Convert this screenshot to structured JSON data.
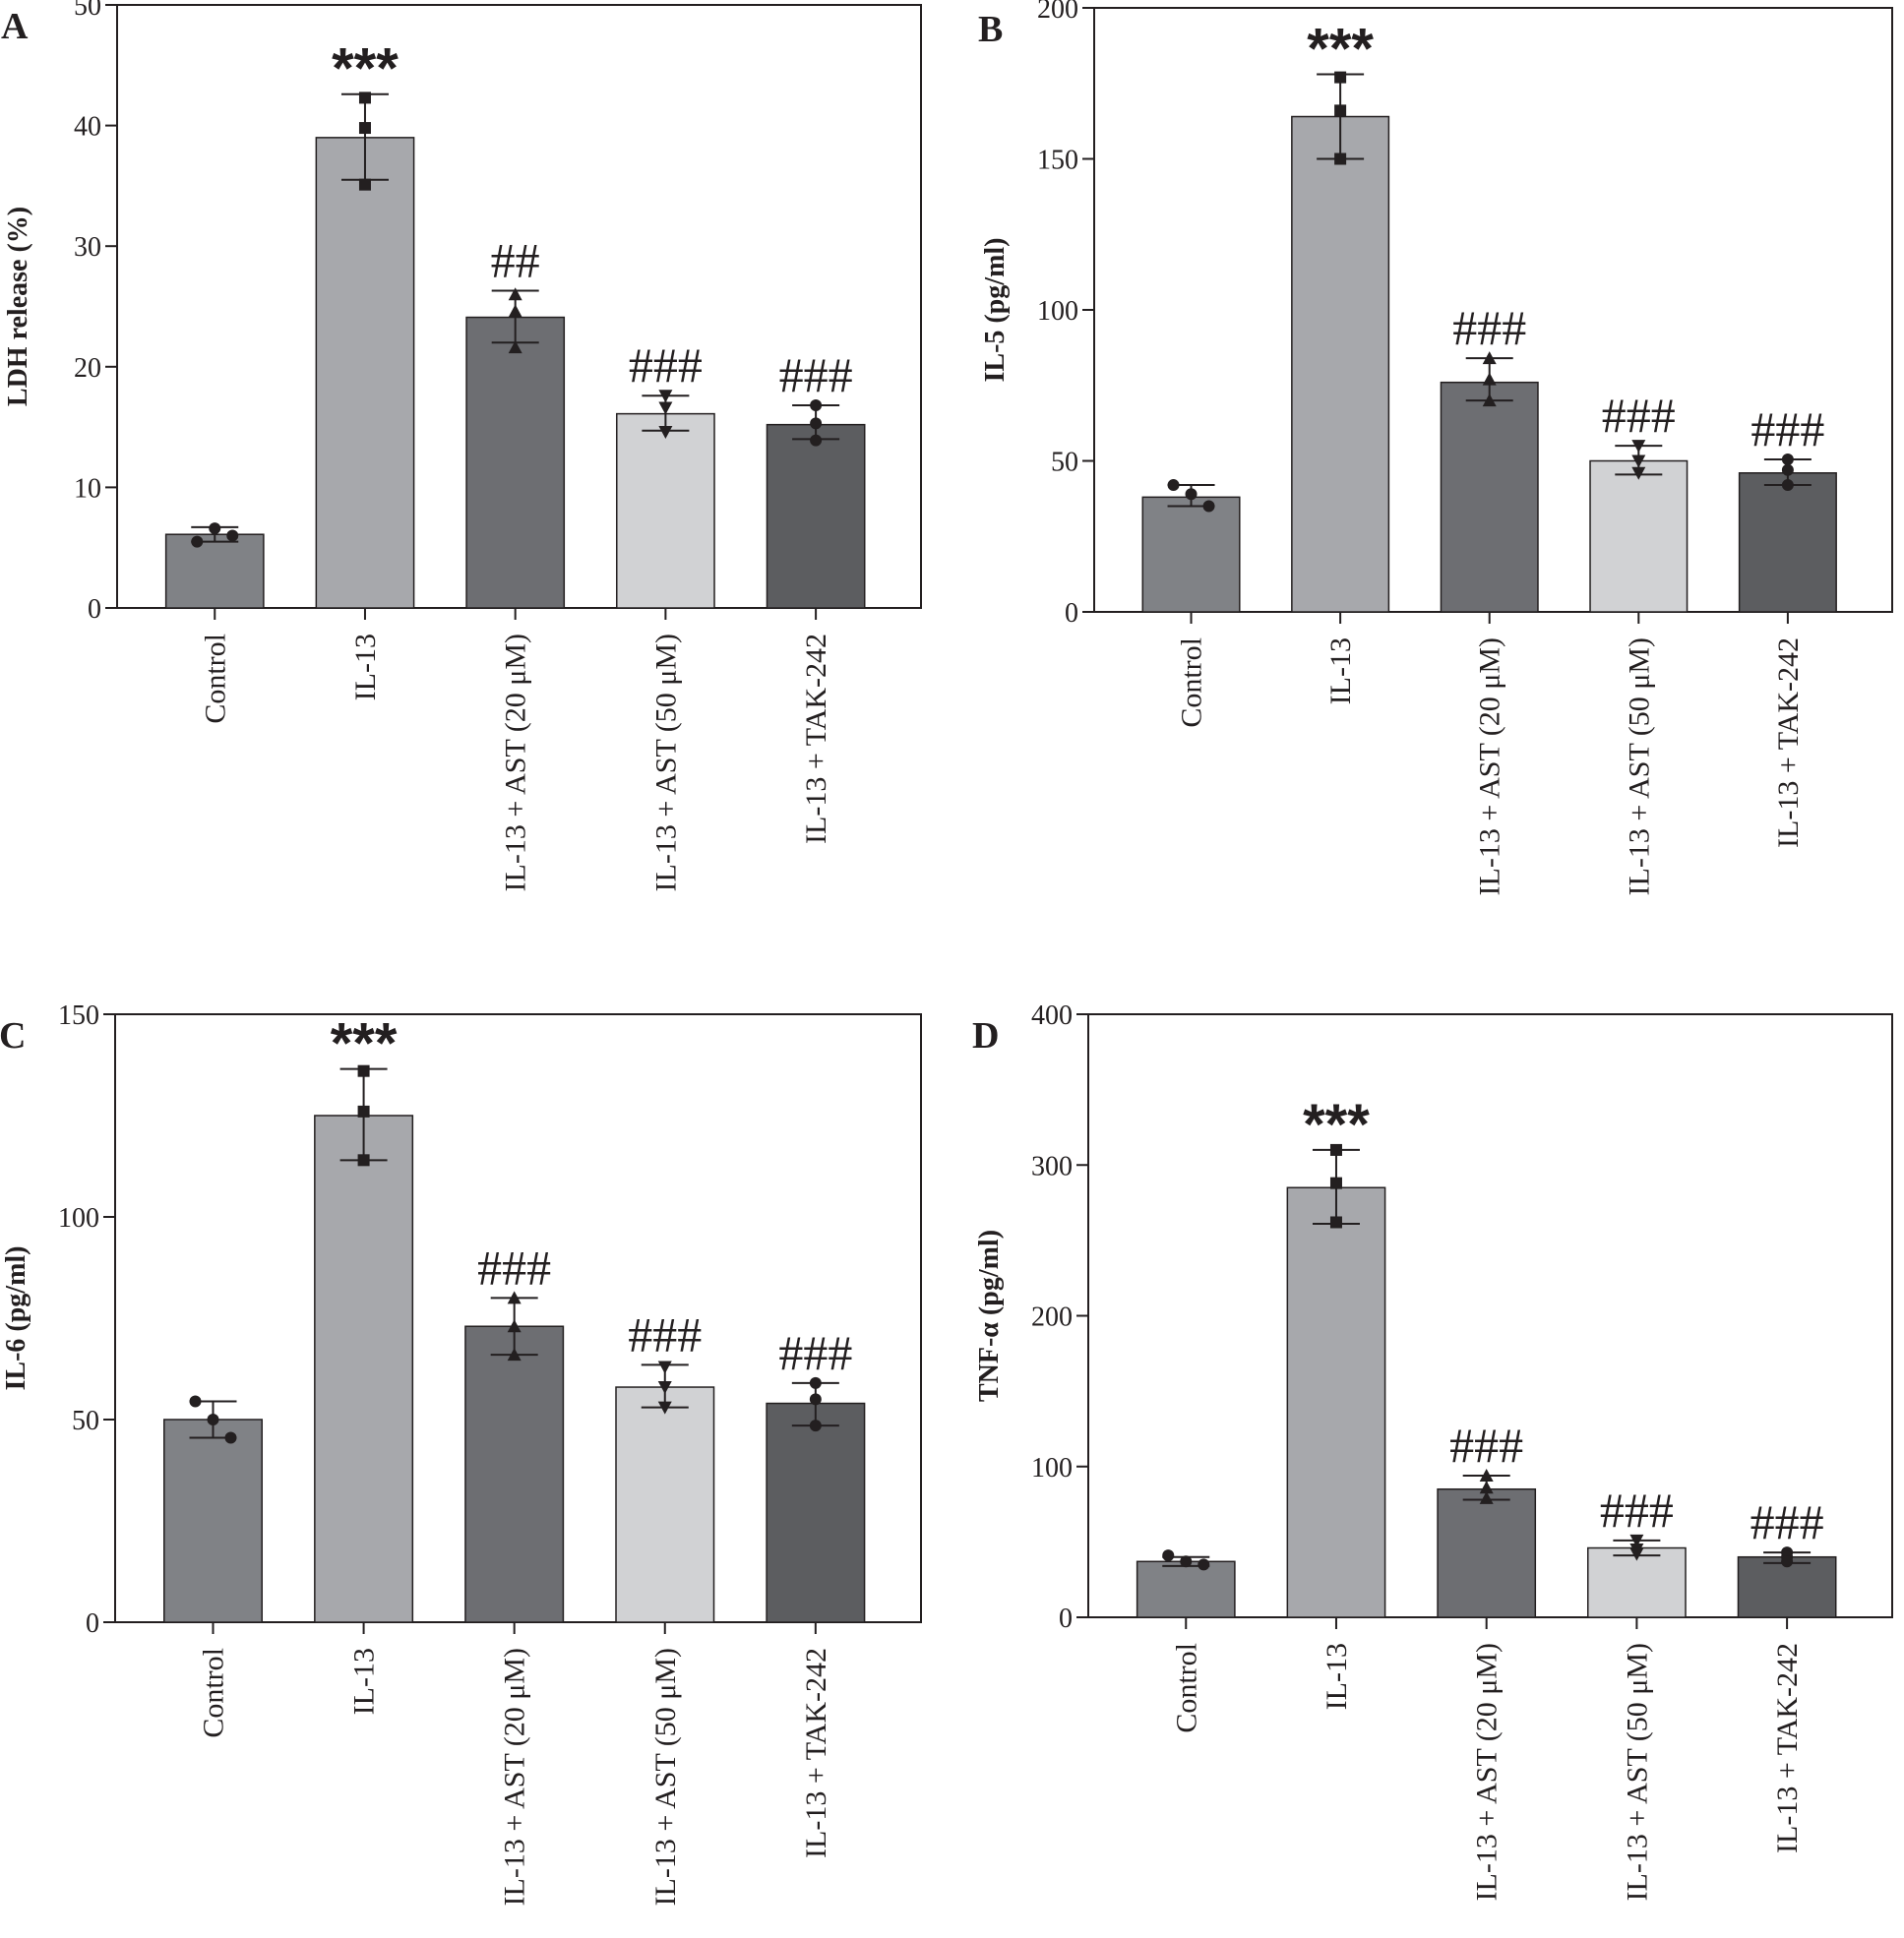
{
  "colors": {
    "bars": [
      "#808286",
      "#a7a8ac",
      "#6d6e72",
      "#d1d2d4",
      "#5c5d60"
    ],
    "axis": "#231f20"
  },
  "marker_shapes": [
    "circle",
    "square",
    "triangle-up",
    "triangle-down",
    "circle"
  ],
  "chart_data": [
    {
      "panel": "A",
      "type": "bar",
      "ylabel": "LDH release (%)",
      "ylim": [
        0,
        50
      ],
      "yticks": [
        0,
        10,
        20,
        30,
        40,
        50
      ],
      "categories": [
        "Control",
        "IL-13",
        "IL-13 + AST (20 μM)",
        "IL-13 + AST (50 μM)",
        "IL-13 + TAK-242"
      ],
      "values": [
        6.1,
        39,
        24.1,
        16.1,
        15.2
      ],
      "error": [
        [
          5.5,
          6.7
        ],
        [
          35.5,
          42.6
        ],
        [
          22.0,
          26.3
        ],
        [
          14.7,
          17.6
        ],
        [
          14.0,
          16.8
        ]
      ],
      "points": [
        [
          5.5,
          6.6,
          6.0
        ],
        [
          42.3,
          39.8,
          35.1
        ],
        [
          26.0,
          24.6,
          21.6
        ],
        [
          17.6,
          16.6,
          14.6
        ],
        [
          16.8,
          15.3,
          13.9
        ]
      ],
      "annotations": [
        "",
        "***",
        "##",
        "###",
        "###"
      ]
    },
    {
      "panel": "B",
      "type": "bar",
      "ylabel": "IL-5 (pg/ml)",
      "ylim": [
        0,
        200
      ],
      "yticks": [
        0,
        50,
        100,
        150,
        200
      ],
      "categories": [
        "Control",
        "IL-13",
        "IL-13 + AST (20 μM)",
        "IL-13 + AST (50 μM)",
        "IL-13 + TAK-242"
      ],
      "values": [
        38,
        164,
        76,
        50,
        46
      ],
      "error": [
        [
          35,
          42
        ],
        [
          150,
          178
        ],
        [
          70,
          84
        ],
        [
          45.5,
          55
        ],
        [
          42,
          50.5
        ]
      ],
      "points": [
        [
          42,
          39,
          35
        ],
        [
          177,
          166,
          150
        ],
        [
          84,
          77,
          70
        ],
        [
          55,
          50,
          46
        ],
        [
          50.5,
          47,
          42
        ]
      ],
      "annotations": [
        "",
        "***",
        "###",
        "###",
        "###"
      ]
    },
    {
      "panel": "C",
      "type": "bar",
      "ylabel": "IL-6 (pg/ml)",
      "ylim": [
        0,
        150
      ],
      "yticks": [
        0,
        50,
        100,
        150
      ],
      "categories": [
        "Control",
        "IL-13",
        "IL-13 + AST (20 μM)",
        "IL-13 + AST (50 μM)",
        "IL-13 + TAK-242"
      ],
      "values": [
        50,
        125,
        73,
        58,
        54
      ],
      "error": [
        [
          45.5,
          54.5
        ],
        [
          114,
          136.5
        ],
        [
          66,
          80
        ],
        [
          53,
          63.5
        ],
        [
          48.5,
          59
        ]
      ],
      "points": [
        [
          54.5,
          50,
          45.5
        ],
        [
          136,
          126,
          114
        ],
        [
          80,
          73,
          66
        ],
        [
          63,
          58,
          53
        ],
        [
          59,
          55,
          48.5
        ]
      ],
      "annotations": [
        "",
        "***",
        "###",
        "###",
        "###"
      ]
    },
    {
      "panel": "D",
      "type": "bar",
      "ylabel": "TNF-α (pg/ml)",
      "ylim": [
        0,
        400
      ],
      "yticks": [
        0,
        100,
        200,
        300,
        400
      ],
      "categories": [
        "Control",
        "IL-13",
        "IL-13 + AST (20 μM)",
        "IL-13 + AST (50 μM)",
        "IL-13 + TAK-242"
      ],
      "values": [
        37,
        285,
        85,
        46,
        40
      ],
      "error": [
        [
          34,
          40
        ],
        [
          261,
          310
        ],
        [
          78,
          94
        ],
        [
          41,
          51
        ],
        [
          36,
          43
        ]
      ],
      "points": [
        [
          41,
          37,
          35
        ],
        [
          310,
          288,
          262
        ],
        [
          94,
          86,
          79
        ],
        [
          51,
          45,
          42
        ],
        [
          43,
          40,
          37
        ]
      ],
      "annotations": [
        "",
        "***",
        "###",
        "###",
        "###"
      ]
    }
  ]
}
